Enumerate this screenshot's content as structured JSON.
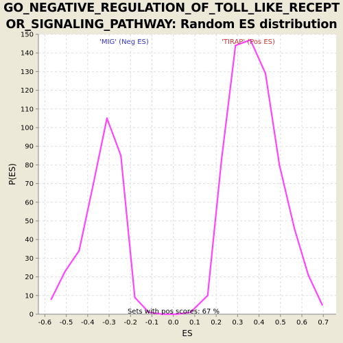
{
  "chart_data": {
    "type": "line",
    "title_line1": "GO_NEGATIVE_REGULATION_OF_TOLL_LIKE_RECEPT",
    "title_line2": "OR_SIGNALING_PATHWAY: Random ES distribution",
    "xlabel": "ES",
    "ylabel": "P(ES)",
    "xlim": [
      -0.63,
      0.76
    ],
    "ylim": [
      0,
      150
    ],
    "x_ticks": [
      -0.6,
      -0.5,
      -0.4,
      -0.3,
      -0.2,
      -0.1,
      0.0,
      0.1,
      0.2,
      0.3,
      0.4,
      0.5,
      0.6,
      0.7
    ],
    "x_tick_labels": [
      "-0.6",
      "-0.5",
      "-0.4",
      "-0.3",
      "-0.2",
      "-0.1",
      "0.0",
      "0.1",
      "0.2",
      "0.3",
      "0.4",
      "0.5",
      "0.6",
      "0.7"
    ],
    "y_ticks": [
      0,
      10,
      20,
      30,
      40,
      50,
      60,
      70,
      80,
      90,
      100,
      110,
      120,
      130,
      140,
      150
    ],
    "y_tick_labels": [
      "0",
      "10",
      "20",
      "30",
      "40",
      "50",
      "60",
      "70",
      "80",
      "90",
      "100",
      "110",
      "120",
      "130",
      "140",
      "150"
    ],
    "grid": true,
    "line_color": "#ff44ff",
    "series": [
      {
        "x": [
          -0.57,
          -0.505,
          -0.44,
          -0.375,
          -0.31,
          -0.245,
          -0.18,
          -0.115,
          -0.05,
          0.015,
          0.08,
          0.16,
          0.225,
          0.29,
          0.36,
          0.43,
          0.495,
          0.565,
          0.63,
          0.695
        ],
        "y": [
          8,
          23,
          34,
          69,
          105,
          85,
          9,
          1,
          0,
          0,
          1,
          10,
          83,
          144,
          147,
          129,
          80,
          46,
          21,
          5
        ]
      }
    ],
    "annotations": {
      "neg": {
        "text": "'MIG' (Neg ES)",
        "color": "#3333cc"
      },
      "pos": {
        "text": "'TIRAP' (Pos ES)",
        "color": "#cc3333"
      },
      "sets": {
        "text": "Sets with pos scores: 67 %",
        "color": "#000000"
      }
    }
  }
}
